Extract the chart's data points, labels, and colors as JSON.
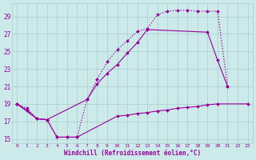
{
  "bg_color": "#cceaea",
  "grid_color": "#aacccc",
  "line_color": "#990099",
  "xlabel": "Windchill (Refroidissement éolien,°C)",
  "xlim": [
    -0.5,
    23.5
  ],
  "ylim": [
    14.5,
    30.5
  ],
  "yticks": [
    15,
    17,
    19,
    21,
    23,
    25,
    27,
    29
  ],
  "xticks": [
    0,
    1,
    2,
    3,
    4,
    5,
    6,
    7,
    8,
    9,
    10,
    11,
    12,
    13,
    14,
    15,
    16,
    17,
    18,
    19,
    20,
    21,
    22,
    23
  ],
  "upper_x": [
    0,
    1,
    2,
    3,
    4,
    5,
    6,
    7,
    8,
    9,
    10,
    11,
    12,
    13,
    14,
    15,
    16,
    17,
    18,
    19,
    20,
    21
  ],
  "upper_y": [
    19.0,
    18.5,
    17.3,
    17.2,
    15.2,
    15.2,
    15.2,
    19.5,
    21.8,
    23.8,
    25.2,
    26.2,
    27.3,
    27.6,
    29.2,
    29.6,
    29.7,
    29.7,
    29.6,
    29.6,
    29.6,
    21.0
  ],
  "mid_x": [
    0,
    2,
    3,
    7,
    8,
    9,
    10,
    11,
    12,
    13,
    19,
    20,
    21
  ],
  "mid_y": [
    19.0,
    17.3,
    17.2,
    19.5,
    21.3,
    22.5,
    23.5,
    24.8,
    26.0,
    27.5,
    27.2,
    24.0,
    21.0
  ],
  "flat_x": [
    0,
    1,
    2,
    3,
    4,
    5,
    6,
    10,
    11,
    12,
    13,
    14,
    15,
    16,
    17,
    18,
    19,
    20,
    23
  ],
  "flat_y": [
    19.0,
    18.3,
    17.3,
    17.2,
    15.2,
    15.2,
    15.2,
    17.6,
    17.7,
    17.9,
    18.0,
    18.2,
    18.3,
    18.5,
    18.6,
    18.7,
    18.9,
    19.0,
    19.0
  ]
}
